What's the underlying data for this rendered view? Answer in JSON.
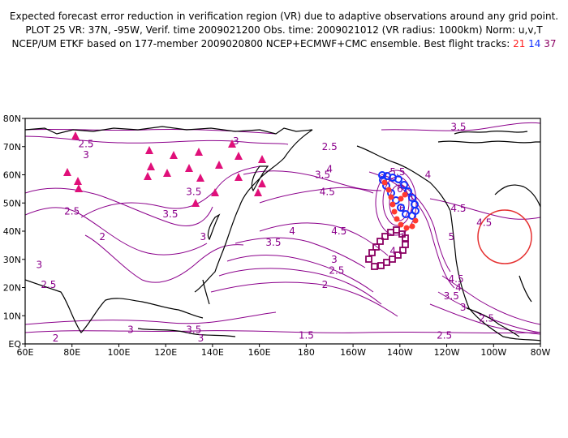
{
  "header": {
    "line1": "Expected forecast error reduction in verification region (VR) due to adaptive observations around any grid point.",
    "line2": "PLOT 25 VR: 37N, -95W, Verif. time 2009021200 Obs. time: 2009021012 (VR radius: 1000km) Norm: u,v,T",
    "line3_prefix": "NCEP/UM ETKF based on 177-member 2009020800 NCEP+ECMWF+CMC ensemble. Best flight tracks:",
    "track_a": "21",
    "track_b": "14",
    "track_c": "37"
  },
  "colors": {
    "contour": "#8b008b",
    "coast": "#000000",
    "triangle": "#e0107a",
    "track_a": "#ff2020",
    "track_b": "#1030ff",
    "track_c": "#8b0063",
    "vr_circle": "#e53030"
  },
  "axes": {
    "lat_labels": [
      "EQ",
      "10N",
      "20N",
      "30N",
      "40N",
      "50N",
      "60N",
      "70N",
      "80N"
    ],
    "lon_labels": [
      "60E",
      "80E",
      "100E",
      "120E",
      "140E",
      "160E",
      "180",
      "160W",
      "140W",
      "120W",
      "100W",
      "80W"
    ]
  },
  "contour_labels": [
    {
      "text": "2.5",
      "lon": 86,
      "lat": 71
    },
    {
      "text": "3",
      "lon": 86,
      "lat": 67
    },
    {
      "text": "3",
      "lon": 150,
      "lat": 72
    },
    {
      "text": "2.5",
      "lon": 190,
      "lat": 70
    },
    {
      "text": "3.5",
      "lon": 245,
      "lat": 77
    },
    {
      "text": "3.5",
      "lon": 132,
      "lat": 54
    },
    {
      "text": "2.5",
      "lon": 80,
      "lat": 47
    },
    {
      "text": "3.5",
      "lon": 122,
      "lat": 46
    },
    {
      "text": "2",
      "lon": 93,
      "lat": 38
    },
    {
      "text": "3",
      "lon": 136,
      "lat": 38
    },
    {
      "text": "4",
      "lon": 174,
      "lat": 40
    },
    {
      "text": "3.5",
      "lon": 166,
      "lat": 36
    },
    {
      "text": "3.5",
      "lon": 187,
      "lat": 60
    },
    {
      "text": "4",
      "lon": 190,
      "lat": 62
    },
    {
      "text": "4.5",
      "lon": 189,
      "lat": 54
    },
    {
      "text": "4.5",
      "lon": 194,
      "lat": 40
    },
    {
      "text": "4",
      "lon": 232,
      "lat": 60
    },
    {
      "text": "4.5",
      "lon": 245,
      "lat": 48
    },
    {
      "text": "5",
      "lon": 242,
      "lat": 38
    },
    {
      "text": "4.5",
      "lon": 256,
      "lat": 43
    },
    {
      "text": "5.5",
      "lon": 219,
      "lat": 61
    },
    {
      "text": "6",
      "lon": 220,
      "lat": 55
    },
    {
      "text": "6",
      "lon": 221,
      "lat": 48
    },
    {
      "text": "4",
      "lon": 217,
      "lat": 33
    },
    {
      "text": "3",
      "lon": 192,
      "lat": 30
    },
    {
      "text": "2.5",
      "lon": 193,
      "lat": 26
    },
    {
      "text": "2",
      "lon": 188,
      "lat": 21
    },
    {
      "text": "4.5",
      "lon": 244,
      "lat": 23
    },
    {
      "text": "4",
      "lon": 245,
      "lat": 20
    },
    {
      "text": "3.5",
      "lon": 242,
      "lat": 17
    },
    {
      "text": "3",
      "lon": 247,
      "lat": 13
    },
    {
      "text": "2.5",
      "lon": 70,
      "lat": 21
    },
    {
      "text": "3",
      "lon": 66,
      "lat": 28
    },
    {
      "text": "2",
      "lon": 73,
      "lat": 2
    },
    {
      "text": "3",
      "lon": 105,
      "lat": 5
    },
    {
      "text": "3.5",
      "lon": 132,
      "lat": 5
    },
    {
      "text": "3",
      "lon": 135,
      "lat": 2
    },
    {
      "text": "1.5",
      "lon": 180,
      "lat": 3
    },
    {
      "text": "2.5",
      "lon": 257,
      "lat": 9
    },
    {
      "text": "2.5",
      "lon": 239,
      "lat": 3
    }
  ]
}
